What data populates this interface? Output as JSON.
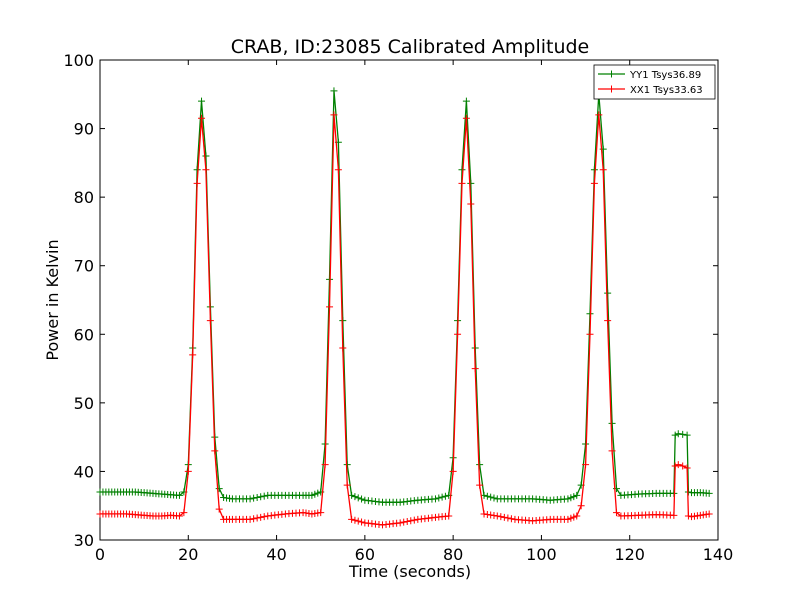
{
  "chart_data": {
    "type": "line",
    "title": "CRAB, ID:23085 Calibrated Amplitude",
    "xlabel": "Time (seconds)",
    "ylabel": "Power in Kelvin",
    "xlim": [
      0,
      140
    ],
    "ylim": [
      30,
      100
    ],
    "xticks": [
      "0",
      "20",
      "40",
      "60",
      "80",
      "100",
      "120",
      "140"
    ],
    "yticks": [
      "30",
      "40",
      "50",
      "60",
      "70",
      "80",
      "90",
      "100"
    ],
    "grid": false,
    "legend_position": "top-right",
    "marker": "plus",
    "series": [
      {
        "name": "YY1 Tsys36.89",
        "color": "#008000",
        "points": [
          [
            0,
            37.0
          ],
          [
            2,
            37.0
          ],
          [
            4,
            37.0
          ],
          [
            6,
            37.0
          ],
          [
            8,
            37.0
          ],
          [
            10,
            36.9
          ],
          [
            12,
            36.8
          ],
          [
            14,
            36.7
          ],
          [
            16,
            36.6
          ],
          [
            18,
            36.5
          ],
          [
            19,
            37.0
          ],
          [
            20,
            41.0
          ],
          [
            21,
            58.0
          ],
          [
            22,
            84.0
          ],
          [
            23,
            94.0
          ],
          [
            24,
            86.0
          ],
          [
            25,
            64.0
          ],
          [
            26,
            45.0
          ],
          [
            27,
            37.5
          ],
          [
            28,
            36.2
          ],
          [
            30,
            36.0
          ],
          [
            34,
            36.0
          ],
          [
            38,
            36.5
          ],
          [
            42,
            36.5
          ],
          [
            46,
            36.5
          ],
          [
            48,
            36.5
          ],
          [
            50,
            37.0
          ],
          [
            51,
            44.0
          ],
          [
            52,
            68.0
          ],
          [
            53,
            95.5
          ],
          [
            54,
            88.0
          ],
          [
            55,
            62.0
          ],
          [
            56,
            41.0
          ],
          [
            57,
            36.5
          ],
          [
            60,
            35.8
          ],
          [
            64,
            35.5
          ],
          [
            68,
            35.5
          ],
          [
            72,
            35.8
          ],
          [
            76,
            36.0
          ],
          [
            79,
            36.5
          ],
          [
            80,
            42.0
          ],
          [
            81,
            62.0
          ],
          [
            82,
            84.0
          ],
          [
            83,
            94.0
          ],
          [
            84,
            82.0
          ],
          [
            85,
            58.0
          ],
          [
            86,
            41.0
          ],
          [
            87,
            36.5
          ],
          [
            90,
            36.0
          ],
          [
            94,
            36.0
          ],
          [
            98,
            36.0
          ],
          [
            102,
            35.8
          ],
          [
            106,
            36.0
          ],
          [
            108,
            36.5
          ],
          [
            109,
            38.0
          ],
          [
            110,
            44.0
          ],
          [
            111,
            63.0
          ],
          [
            112,
            84.0
          ],
          [
            113,
            95.0
          ],
          [
            114,
            87.0
          ],
          [
            115,
            66.0
          ],
          [
            116,
            47.0
          ],
          [
            117,
            37.5
          ],
          [
            118,
            36.5
          ],
          [
            122,
            36.7
          ],
          [
            126,
            36.8
          ],
          [
            130,
            36.8
          ],
          [
            130.3,
            45.3
          ],
          [
            131,
            45.5
          ],
          [
            132,
            45.4
          ],
          [
            133,
            45.3
          ],
          [
            133.3,
            37.0
          ],
          [
            134,
            36.9
          ],
          [
            136,
            36.9
          ],
          [
            138,
            36.8
          ]
        ]
      },
      {
        "name": "XX1 Tsys33.63",
        "color": "#ff0000",
        "points": [
          [
            0,
            33.8
          ],
          [
            2,
            33.8
          ],
          [
            4,
            33.8
          ],
          [
            6,
            33.8
          ],
          [
            8,
            33.7
          ],
          [
            10,
            33.6
          ],
          [
            12,
            33.5
          ],
          [
            14,
            33.5
          ],
          [
            16,
            33.6
          ],
          [
            18,
            33.5
          ],
          [
            19,
            34.0
          ],
          [
            20,
            40.0
          ],
          [
            21,
            57.0
          ],
          [
            22,
            82.0
          ],
          [
            23,
            91.5
          ],
          [
            24,
            84.0
          ],
          [
            25,
            62.0
          ],
          [
            26,
            43.0
          ],
          [
            27,
            34.5
          ],
          [
            28,
            33.0
          ],
          [
            30,
            33.0
          ],
          [
            34,
            33.0
          ],
          [
            38,
            33.5
          ],
          [
            42,
            33.8
          ],
          [
            46,
            34.0
          ],
          [
            48,
            33.8
          ],
          [
            50,
            34.0
          ],
          [
            51,
            41.0
          ],
          [
            52,
            64.0
          ],
          [
            53,
            92.0
          ],
          [
            54,
            84.0
          ],
          [
            55,
            58.0
          ],
          [
            56,
            38.0
          ],
          [
            57,
            33.0
          ],
          [
            60,
            32.5
          ],
          [
            64,
            32.2
          ],
          [
            68,
            32.5
          ],
          [
            72,
            33.0
          ],
          [
            76,
            33.3
          ],
          [
            79,
            33.5
          ],
          [
            80,
            40.0
          ],
          [
            81,
            60.0
          ],
          [
            82,
            82.0
          ],
          [
            83,
            91.5
          ],
          [
            84,
            79.0
          ],
          [
            85,
            55.0
          ],
          [
            86,
            38.0
          ],
          [
            87,
            33.8
          ],
          [
            90,
            33.5
          ],
          [
            94,
            33.0
          ],
          [
            98,
            32.8
          ],
          [
            102,
            33.0
          ],
          [
            106,
            33.0
          ],
          [
            108,
            33.5
          ],
          [
            109,
            35.0
          ],
          [
            110,
            41.0
          ],
          [
            111,
            60.0
          ],
          [
            112,
            82.0
          ],
          [
            113,
            92.0
          ],
          [
            114,
            84.0
          ],
          [
            115,
            62.0
          ],
          [
            116,
            43.0
          ],
          [
            117,
            34.0
          ],
          [
            118,
            33.5
          ],
          [
            122,
            33.6
          ],
          [
            126,
            33.7
          ],
          [
            130,
            33.6
          ],
          [
            130.3,
            40.8
          ],
          [
            131,
            41.0
          ],
          [
            132,
            40.8
          ],
          [
            133,
            40.5
          ],
          [
            133.3,
            33.5
          ],
          [
            134,
            33.4
          ],
          [
            136,
            33.6
          ],
          [
            138,
            33.8
          ]
        ]
      }
    ]
  }
}
